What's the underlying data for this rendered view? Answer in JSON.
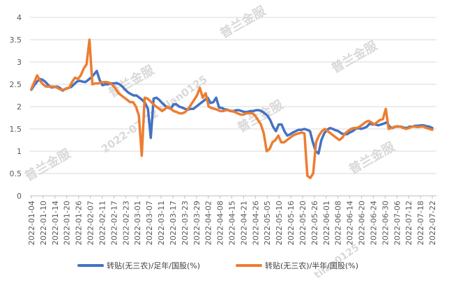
{
  "chart_data": {
    "type": "line",
    "title": "",
    "xlabel": "",
    "ylabel": "",
    "ylim": [
      0,
      4
    ],
    "yticks": [
      "0",
      "0.5",
      "1",
      "1.5",
      "2",
      "2.5",
      "3",
      "3.5",
      "4"
    ],
    "grid": true,
    "legend_position": "bottom",
    "x_tick_labels": [
      "2022-01-04",
      "2022-01-10",
      "2022-01-14",
      "2022-01-20",
      "2022-01-26",
      "2022-02-07",
      "2022-02-11",
      "2022-02-17",
      "2022-02-23",
      "2022-03-01",
      "2022-03-07",
      "2022-03-11",
      "2022-03-17",
      "2022-03-23",
      "2022-03-29",
      "2022-04-02",
      "2022-04-08",
      "2022-04-15",
      "2022-04-21",
      "2022-04-26",
      "2022-05-05",
      "2022-05-10",
      "2022-05-16",
      "2022-05-20",
      "2022-05-26",
      "2022-06-01",
      "2022-06-08",
      "2022-06-14",
      "2022-06-20",
      "2022-06-24",
      "2022-06-30",
      "2022-07-06",
      "2022-07-12",
      "2022-07-18",
      "2022-07-22"
    ],
    "series": [
      {
        "name": "转贴(无三农)/足年/国股(%)",
        "color": "#4472C4",
        "values": [
          2.38,
          2.48,
          2.56,
          2.62,
          2.6,
          2.55,
          2.48,
          2.43,
          2.44,
          2.45,
          2.42,
          2.36,
          2.4,
          2.42,
          2.44,
          2.5,
          2.56,
          2.58,
          2.56,
          2.55,
          2.6,
          2.65,
          2.72,
          2.8,
          2.6,
          2.48,
          2.5,
          2.5,
          2.52,
          2.52,
          2.53,
          2.5,
          2.45,
          2.38,
          2.32,
          2.28,
          2.25,
          2.25,
          2.2,
          2.15,
          2.08,
          1.95,
          1.3,
          2.18,
          2.2,
          2.15,
          2.08,
          2.02,
          1.98,
          1.95,
          2.05,
          2.05,
          2.0,
          1.98,
          1.95,
          1.93,
          1.95,
          1.95,
          2.0,
          2.05,
          2.1,
          2.15,
          2.2,
          2.08,
          2.1,
          2.2,
          1.98,
          1.97,
          1.94,
          1.93,
          1.9,
          1.9,
          1.92,
          1.92,
          1.9,
          1.88,
          1.88,
          1.9,
          1.9,
          1.92,
          1.92,
          1.9,
          1.85,
          1.8,
          1.7,
          1.55,
          1.45,
          1.6,
          1.6,
          1.45,
          1.35,
          1.38,
          1.42,
          1.45,
          1.48,
          1.48,
          1.5,
          1.48,
          1.45,
          1.2,
          1.0,
          0.95,
          1.25,
          1.4,
          1.48,
          1.52,
          1.5,
          1.47,
          1.45,
          1.4,
          1.38,
          1.38,
          1.42,
          1.45,
          1.5,
          1.52,
          1.5,
          1.52,
          1.55,
          1.62,
          1.6,
          1.6,
          1.58,
          1.6,
          1.62,
          1.65,
          1.55,
          1.52,
          1.55,
          1.55,
          1.55,
          1.53,
          1.52,
          1.55,
          1.55,
          1.57,
          1.57,
          1.58,
          1.58,
          1.56,
          1.55,
          1.52
        ]
      },
      {
        "name": "转贴(无三农)/半年/国股(%)",
        "color": "#ED7D31",
        "values": [
          2.4,
          2.55,
          2.7,
          2.58,
          2.5,
          2.45,
          2.45,
          2.45,
          2.45,
          2.42,
          2.38,
          2.38,
          2.4,
          2.42,
          2.55,
          2.65,
          2.62,
          2.7,
          2.85,
          2.95,
          3.5,
          2.5,
          2.52,
          2.52,
          2.54,
          2.55,
          2.55,
          2.53,
          2.48,
          2.4,
          2.3,
          2.25,
          2.2,
          2.15,
          2.1,
          2.1,
          2.0,
          1.8,
          0.9,
          2.2,
          2.18,
          2.12,
          2.05,
          2.0,
          1.95,
          1.9,
          1.95,
          2.0,
          1.95,
          1.9,
          1.88,
          1.85,
          1.85,
          1.88,
          1.95,
          2.05,
          2.15,
          2.25,
          2.42,
          2.2,
          2.3,
          2.0,
          1.97,
          1.95,
          1.93,
          1.9,
          1.9,
          1.92,
          1.92,
          1.9,
          1.88,
          1.85,
          1.82,
          1.82,
          1.85,
          1.85,
          1.85,
          1.8,
          1.7,
          1.6,
          1.4,
          1.0,
          1.05,
          1.2,
          1.25,
          1.35,
          1.2,
          1.2,
          1.25,
          1.3,
          1.35,
          1.38,
          1.4,
          1.42,
          1.4,
          0.45,
          0.4,
          0.5,
          1.2,
          1.35,
          1.45,
          1.5,
          1.45,
          1.4,
          1.35,
          1.3,
          1.25,
          1.3,
          1.4,
          1.45,
          1.5,
          1.52,
          1.52,
          1.55,
          1.6,
          1.65,
          1.68,
          1.65,
          1.6,
          1.65,
          1.7,
          1.72,
          1.95,
          1.5,
          1.52,
          1.55,
          1.56,
          1.55,
          1.52,
          1.5,
          1.52,
          1.55,
          1.55,
          1.54,
          1.55,
          1.55,
          1.52,
          1.5,
          1.48
        ]
      }
    ]
  },
  "watermarks": [
    "普兰金服",
    "普兰金服",
    "普兰金服",
    "普兰金服",
    "普兰金服",
    "普兰金服"
  ],
  "watermark_ids": [
    "2022-07-22 tilan0125",
    "tilan0125"
  ]
}
